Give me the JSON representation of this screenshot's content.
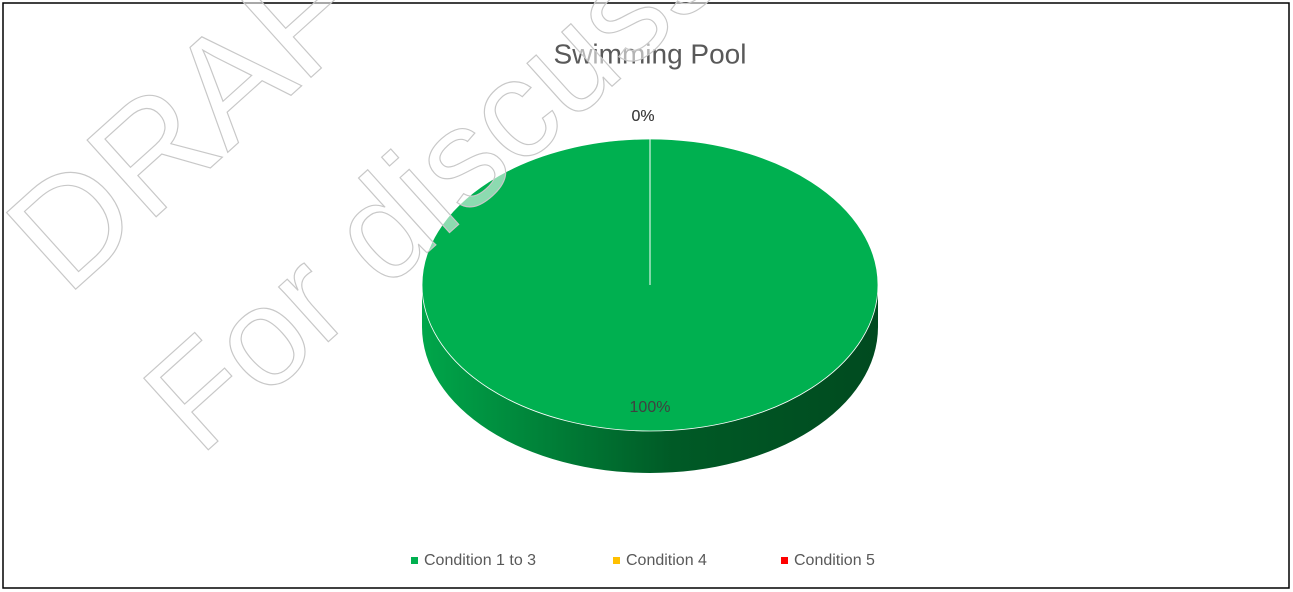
{
  "chart_data": {
    "type": "pie",
    "title": "Swimming Pool",
    "categories": [
      "Condition 1 to 3",
      "Condition 4",
      "Condition 5"
    ],
    "values": [
      100,
      0,
      0
    ],
    "value_labels": [
      "100%",
      "0%",
      "0%"
    ],
    "colors": [
      "#00b050",
      "#ffc000",
      "#ff0000"
    ],
    "legend": "bottom",
    "watermark": [
      "DRAFT",
      "For discuss"
    ]
  }
}
